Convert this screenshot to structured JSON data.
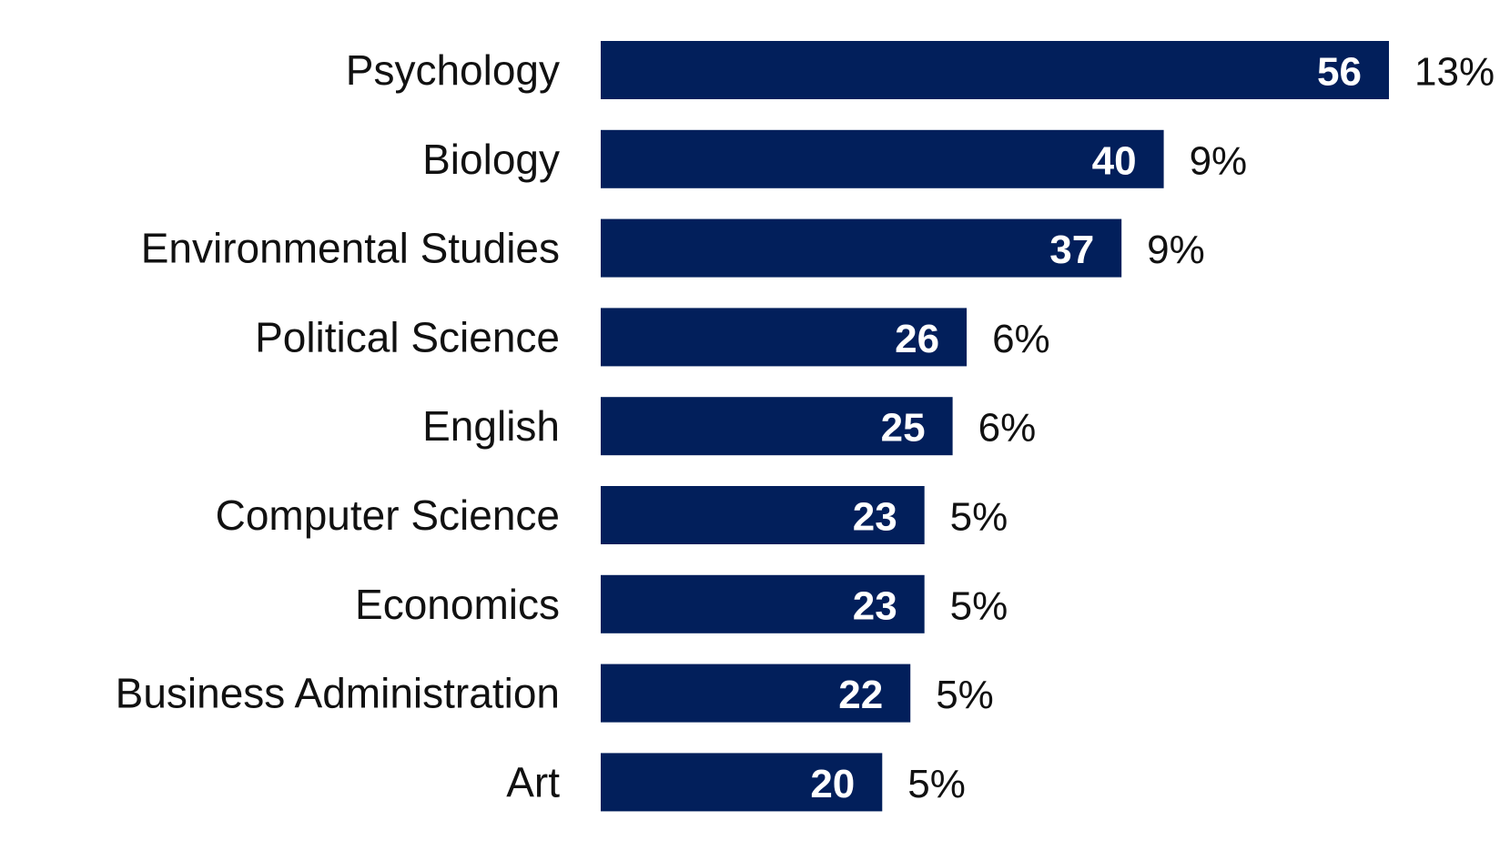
{
  "colors": {
    "bar": "#021f5b",
    "value_text": "#ffffff",
    "label_text": "#111111",
    "background": "#ffffff"
  },
  "chart_data": {
    "type": "bar",
    "orientation": "horizontal",
    "categories": [
      "Psychology",
      "Biology",
      "Environmental Studies",
      "Political Science",
      "English",
      "Computer Science",
      "Economics",
      "Business Administration",
      "Art"
    ],
    "values": [
      56,
      40,
      37,
      26,
      25,
      23,
      23,
      22,
      20
    ],
    "percent_labels": [
      "13%",
      "9%",
      "9%",
      "6%",
      "6%",
      "5%",
      "5%",
      "5%",
      "5%"
    ],
    "title": "",
    "xlabel": "",
    "ylabel": "",
    "xlim": [
      0,
      56
    ],
    "grid": false,
    "legend": "none"
  }
}
